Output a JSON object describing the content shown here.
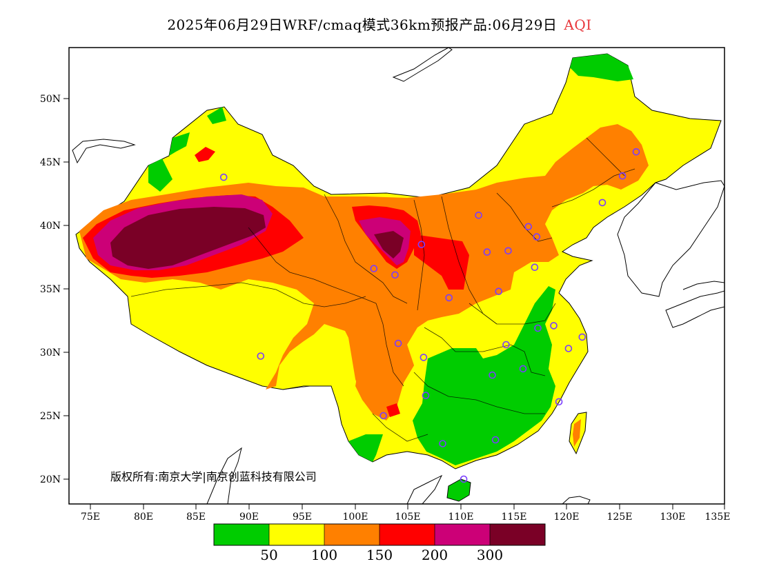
{
  "title": {
    "main": "2025年06月29日WRF/cmaq模式36km预报产品:06月29日",
    "variable": "AQI",
    "variable_color": "#e8363a"
  },
  "copyright": "版权所有:南京大学|南京创蓝科技有限公司",
  "axes": {
    "lon_ticks": [
      "75E",
      "80E",
      "85E",
      "90E",
      "95E",
      "100E",
      "105E",
      "110E",
      "115E",
      "120E",
      "125E",
      "130E",
      "135E"
    ],
    "lat_ticks": [
      "50N",
      "45N",
      "40N",
      "35N",
      "30N",
      "25N",
      "20N"
    ],
    "lon_range": [
      73,
      135
    ],
    "lat_range": [
      18,
      54
    ]
  },
  "colorbar": {
    "colors": [
      "#00cc00",
      "#ffff00",
      "#ff8000",
      "#ff0000",
      "#cc0077",
      "#7a0026"
    ],
    "labels": [
      "50",
      "100",
      "150",
      "200",
      "300"
    ]
  },
  "city_markers": [
    [
      87.6,
      43.8
    ],
    [
      116.4,
      39.9
    ],
    [
      117.2,
      39.1
    ],
    [
      114.5,
      38.0
    ],
    [
      112.5,
      37.9
    ],
    [
      111.7,
      40.8
    ],
    [
      106.3,
      38.5
    ],
    [
      103.8,
      36.1
    ],
    [
      101.8,
      36.6
    ],
    [
      108.9,
      34.3
    ],
    [
      113.6,
      34.8
    ],
    [
      117.0,
      36.7
    ],
    [
      114.3,
      30.6
    ],
    [
      113.0,
      28.2
    ],
    [
      106.5,
      29.6
    ],
    [
      104.1,
      30.7
    ],
    [
      91.1,
      29.7
    ],
    [
      106.7,
      26.6
    ],
    [
      102.7,
      25.0
    ],
    [
      108.3,
      22.8
    ],
    [
      113.3,
      23.1
    ],
    [
      110.3,
      20.0
    ],
    [
      115.9,
      28.7
    ],
    [
      117.3,
      31.9
    ],
    [
      118.8,
      32.1
    ],
    [
      120.2,
      30.3
    ],
    [
      121.5,
      31.2
    ],
    [
      119.3,
      26.1
    ],
    [
      123.4,
      41.8
    ],
    [
      125.3,
      43.9
    ],
    [
      126.6,
      45.8
    ]
  ],
  "colors": {
    "city_marker": "#7a3cff"
  }
}
